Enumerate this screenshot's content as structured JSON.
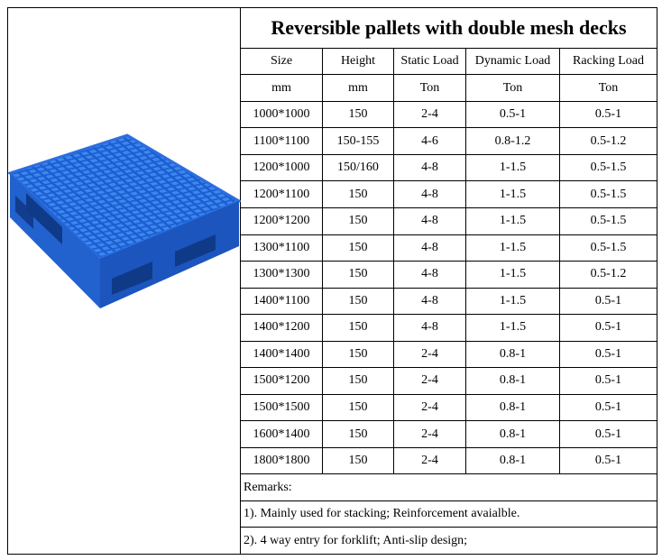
{
  "title": "Reversible pallets with double mesh decks",
  "table": {
    "header": [
      "Size",
      "Height",
      "Static Load",
      "Dynamic Load",
      "Racking Load"
    ],
    "units": [
      "mm",
      "mm",
      "Ton",
      "Ton",
      "Ton"
    ],
    "rows": [
      [
        "1000*1000",
        "150",
        "2-4",
        "0.5-1",
        "0.5-1"
      ],
      [
        "1100*1100",
        "150-155",
        "4-6",
        "0.8-1.2",
        "0.5-1.2"
      ],
      [
        "1200*1000",
        "150/160",
        "4-8",
        "1-1.5",
        "0.5-1.5"
      ],
      [
        "1200*1100",
        "150",
        "4-8",
        "1-1.5",
        "0.5-1.5"
      ],
      [
        "1200*1200",
        "150",
        "4-8",
        "1-1.5",
        "0.5-1.5"
      ],
      [
        "1300*1100",
        "150",
        "4-8",
        "1-1.5",
        "0.5-1.5"
      ],
      [
        "1300*1300",
        "150",
        "4-8",
        "1-1.5",
        "0.5-1.2"
      ],
      [
        "1400*1100",
        "150",
        "4-8",
        "1-1.5",
        "0.5-1"
      ],
      [
        "1400*1200",
        "150",
        "4-8",
        "1-1.5",
        "0.5-1"
      ],
      [
        "1400*1400",
        "150",
        "2-4",
        "0.8-1",
        "0.5-1"
      ],
      [
        "1500*1200",
        "150",
        "2-4",
        "0.8-1",
        "0.5-1"
      ],
      [
        "1500*1500",
        "150",
        "2-4",
        "0.8-1",
        "0.5-1"
      ],
      [
        "1600*1400",
        "150",
        "2-4",
        "0.8-1",
        "0.5-1"
      ],
      [
        "1800*1800",
        "150",
        "2-4",
        "0.8-1",
        "0.5-1"
      ]
    ]
  },
  "remarks": [
    "Remarks:",
    "1). Mainly used for stacking; Reinforcement avaialble.",
    "2). 4 way entry for forklift; Anti-slip design;"
  ]
}
